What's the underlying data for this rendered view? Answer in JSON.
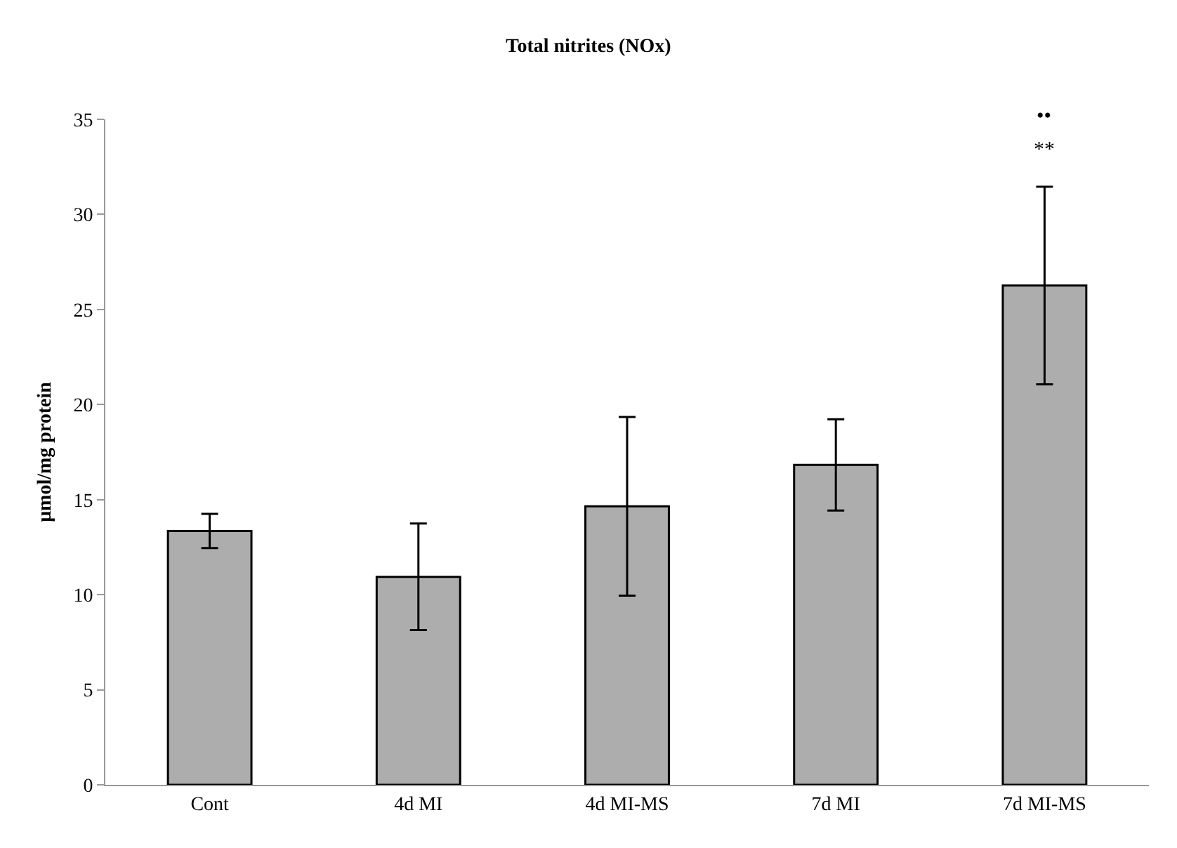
{
  "chart_data": {
    "type": "bar",
    "title": "Total nitrites (NOx)",
    "ylabel": "μmol/mg protein",
    "categories": [
      "Cont",
      "4d MI",
      "4d MI-MS",
      "7d MI",
      "7d MI-MS"
    ],
    "values": [
      13.35,
      10.94,
      14.65,
      16.83,
      26.26
    ],
    "errors": [
      0.9,
      2.8,
      4.7,
      2.4,
      5.2
    ],
    "color": "#adadad",
    "ylim": [
      0,
      35
    ],
    "yticks": [
      0,
      5,
      10,
      15,
      20,
      25,
      30,
      35
    ],
    "grid": false,
    "annotations": [
      "**",
      "••"
    ]
  }
}
